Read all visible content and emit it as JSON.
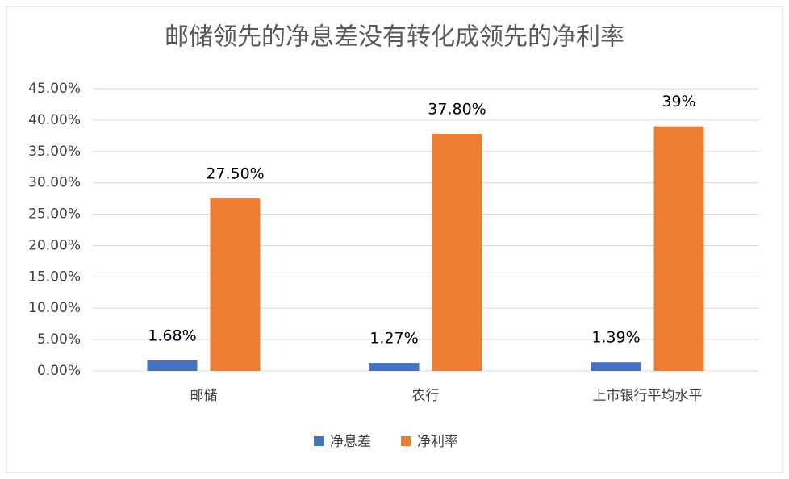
{
  "chart_data": {
    "type": "bar",
    "title": "邮储领先的净息差没有转化成领先的净利率",
    "categories": [
      "邮储",
      "农行",
      "上市银行平均水平"
    ],
    "series": [
      {
        "name": "净息差",
        "color": "#4472c4",
        "values": [
          1.68,
          1.27,
          1.39
        ],
        "value_labels": [
          "1.68%",
          "1.27%",
          "1.39%"
        ]
      },
      {
        "name": "净利率",
        "color": "#ed7d31",
        "values": [
          27.5,
          37.8,
          39
        ],
        "value_labels": [
          "27.50%",
          "37.80%",
          "39%"
        ]
      }
    ],
    "ylim": [
      0,
      45
    ],
    "yticks": [
      {
        "value": 0,
        "label": "0.00%"
      },
      {
        "value": 5,
        "label": "5.00%"
      },
      {
        "value": 10,
        "label": "10.00%"
      },
      {
        "value": 15,
        "label": "15.00%"
      },
      {
        "value": 20,
        "label": "20.00%"
      },
      {
        "value": 25,
        "label": "25.00%"
      },
      {
        "value": 30,
        "label": "30.00%"
      },
      {
        "value": 35,
        "label": "35.00%"
      },
      {
        "value": 40,
        "label": "40.00%"
      },
      {
        "value": 45,
        "label": "45.00%"
      }
    ],
    "grid": true,
    "legend": "bottom"
  }
}
